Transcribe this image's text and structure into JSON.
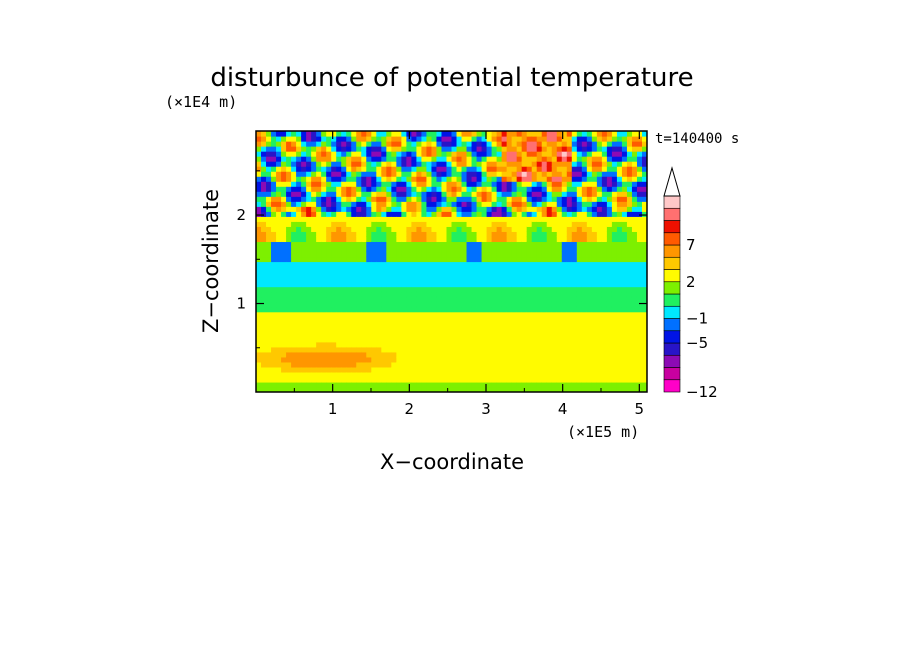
{
  "chart_data": {
    "type": "heatmap",
    "title": "disturbunce of potential temperature",
    "xlabel": "X−coordinate",
    "ylabel": "Z−coordinate",
    "x_unit": "(×1E5 m)",
    "y_unit": "(×1E4 m)",
    "time_label": "t=140400 s",
    "xlim": [
      0,
      5.1
    ],
    "ylim": [
      0,
      2.95
    ],
    "x_ticks": [
      1,
      2,
      3,
      4,
      5
    ],
    "y_ticks": [
      1,
      2
    ],
    "colorbar": {
      "levels": [
        -12,
        -10,
        -8,
        -6,
        -5,
        -3,
        -1,
        0,
        1,
        2,
        4,
        5,
        7,
        8,
        9,
        11
      ],
      "colors": [
        "#ff00c8",
        "#c800a0",
        "#8c0ab4",
        "#2814c8",
        "#0014e6",
        "#0070ff",
        "#00e8ff",
        "#20f060",
        "#7df000",
        "#fffb00",
        "#ffc800",
        "#ff9600",
        "#ff5a00",
        "#ee1000",
        "#ff7070",
        "#ffc8c8"
      ],
      "tick_labels": [
        "-12",
        "-5",
        "-1",
        "2",
        "7"
      ],
      "tick_values": [
        -12,
        -5,
        -1,
        2,
        7
      ],
      "extend": "max"
    },
    "field_description_bands": [
      {
        "z": [
          0.0,
          0.12
        ],
        "value": 1.5
      },
      {
        "z": [
          0.12,
          0.55
        ],
        "value": 3.5
      },
      {
        "z": [
          0.55,
          0.9
        ],
        "value": 2.5
      },
      {
        "z": [
          0.9,
          1.2
        ],
        "value": 0.5
      },
      {
        "z": [
          1.2,
          1.45
        ],
        "value": -0.5
      },
      {
        "z": [
          1.45,
          1.7
        ],
        "value": 1.5
      },
      {
        "z": [
          1.7,
          2.1
        ],
        "value": 3.0
      },
      {
        "z": [
          2.1,
          2.95
        ],
        "value": 0.0
      }
    ]
  }
}
